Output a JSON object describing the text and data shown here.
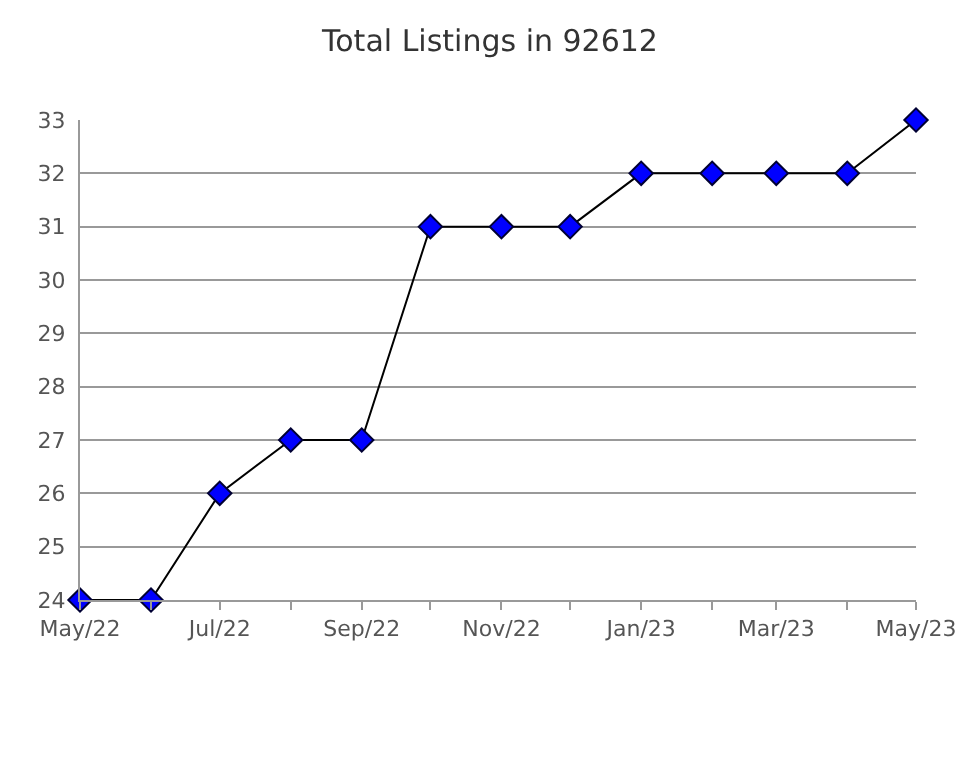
{
  "chart_data": {
    "type": "line",
    "title": "Total Listings in 92612",
    "x": [
      "2022-05",
      "2022-06",
      "2022-07",
      "2022-08",
      "2022-09",
      "2022-10",
      "2022-11",
      "2022-12",
      "2023-01",
      "2023-02",
      "2023-03",
      "2023-04",
      "2023-05"
    ],
    "series": [
      {
        "color": "#0000ff",
        "values": [
          24,
          24,
          26,
          27,
          27,
          31,
          31,
          31,
          32,
          32,
          32,
          32,
          33
        ]
      }
    ],
    "xlim": [
      "2022-05",
      "2023-05"
    ],
    "xticks": [
      {
        "value": "2022-05",
        "label": "May/22"
      },
      {
        "value": "2022-06",
        "label": null
      },
      {
        "value": "2022-07",
        "label": "Jul/22"
      },
      {
        "value": "2022-08",
        "label": null
      },
      {
        "value": "2022-09",
        "label": "Sep/22"
      },
      {
        "value": "2022-10",
        "label": null
      },
      {
        "value": "2022-11",
        "label": "Nov/22"
      },
      {
        "value": "2022-12",
        "label": null
      },
      {
        "value": "2023-01",
        "label": "Jan/23"
      },
      {
        "value": "2023-02",
        "label": null
      },
      {
        "value": "2023-03",
        "label": "Mar/23"
      },
      {
        "value": "2023-04",
        "label": null
      },
      {
        "value": "2023-05",
        "label": "May/23"
      }
    ],
    "ylim": [
      24,
      33
    ],
    "yticks": [
      24,
      25,
      26,
      27,
      28,
      29,
      30,
      31,
      32,
      33
    ],
    "grid": "y",
    "marker": "diamond",
    "line_style": "solid"
  }
}
